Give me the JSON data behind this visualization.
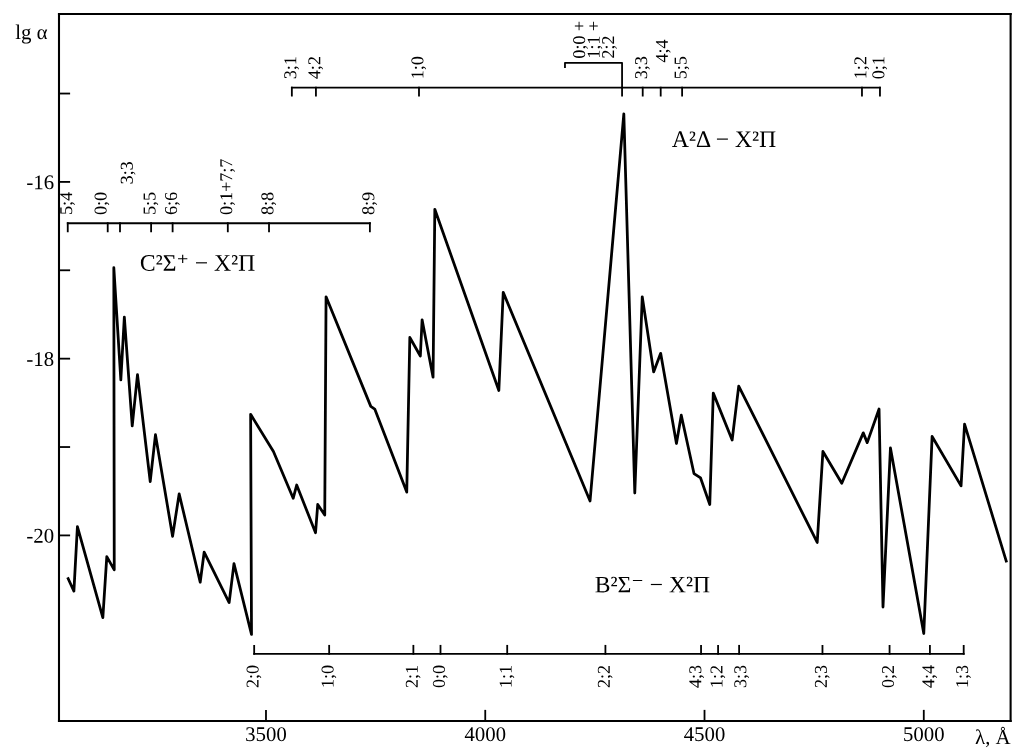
{
  "chart_data": {
    "type": "line",
    "xlabel": "λ, Å",
    "ylabel": "lg α",
    "x": [
      3049,
      3062,
      3070,
      3128,
      3137,
      3154,
      3153,
      3169,
      3177,
      3195,
      3207,
      3236,
      3248,
      3287,
      3302,
      3350,
      3359,
      3416,
      3427,
      3467,
      3465,
      3517,
      3562,
      3570,
      3613,
      3618,
      3634,
      3637,
      3739,
      3748,
      3821,
      3828,
      3852,
      3856,
      3881,
      3885,
      4031,
      4041,
      4239,
      4316,
      4341,
      4358,
      4384,
      4400,
      4436,
      4447,
      4476,
      4491,
      4512,
      4520,
      4563,
      4578,
      4757,
      4770,
      4813,
      4862,
      4871,
      4898,
      4907,
      4924,
      5000,
      5019,
      5085,
      5093,
      5188
    ],
    "series": [
      {
        "color": "#000000",
        "values": [
          -20.49,
          -20.63,
          -19.9,
          -20.93,
          -20.24,
          -20.39,
          -16.97,
          -18.24,
          -17.53,
          -18.76,
          -18.18,
          -19.39,
          -18.86,
          -20.01,
          -19.53,
          -20.53,
          -20.19,
          -20.76,
          -20.32,
          -21.12,
          -18.63,
          -19.05,
          -19.58,
          -19.43,
          -19.97,
          -19.65,
          -19.77,
          -17.3,
          -18.54,
          -18.57,
          -19.51,
          -17.76,
          -17.97,
          -17.56,
          -18.21,
          -16.31,
          -18.36,
          -17.25,
          -19.61,
          -15.23,
          -19.52,
          -17.3,
          -18.15,
          -17.94,
          -18.96,
          -18.64,
          -19.3,
          -19.35,
          -19.65,
          -18.39,
          -18.92,
          -18.31,
          -20.08,
          -19.05,
          -19.41,
          -18.84,
          -18.95,
          -18.57,
          -20.81,
          -19.01,
          -21.11,
          -18.88,
          -19.44,
          -18.74,
          -20.29
        ]
      }
    ],
    "xlim": [
      3028,
      5198
    ],
    "ylim": [
      -22.1,
      -14.1
    ],
    "xticks": [
      3500,
      4000,
      4500,
      5000
    ],
    "yticks": [
      {
        "value": -15,
        "label": null
      },
      -16,
      {
        "value": -17,
        "label": null
      },
      -18,
      {
        "value": -19,
        "label": null
      },
      -20
    ],
    "grid": false,
    "legend": false,
    "marker": "none",
    "line_style": "solid",
    "annotations": [
      "C²Σ⁺ − X²Π",
      "A²Δ − X²Π",
      "B²Σ⁻ − X²Π",
      "5;4",
      "0;0",
      "3;3",
      "5;5",
      "6;6",
      "0;1+7;7",
      "8;8",
      "8;9",
      "3;1",
      "4;2",
      "1;0",
      "0;0 +\n1;1 +\n2;2",
      "3;3",
      "4;4",
      "5;5",
      "1;2",
      "0;1",
      "2;0",
      "1;0",
      "2;1",
      "0;0",
      "1;1",
      "2;2",
      "4;3",
      "1;2",
      "3;3",
      "2;3",
      "0;2",
      "4;4",
      "1;3"
    ]
  }
}
